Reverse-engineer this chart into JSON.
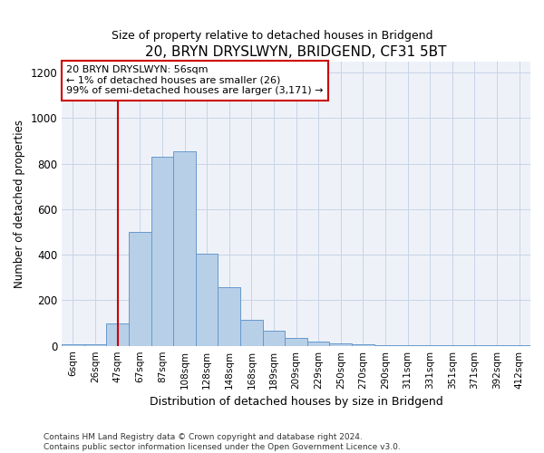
{
  "title": "20, BRYN DRYSLWYN, BRIDGEND, CF31 5BT",
  "subtitle": "Size of property relative to detached houses in Bridgend",
  "xlabel": "Distribution of detached houses by size in Bridgend",
  "ylabel": "Number of detached properties",
  "categories": [
    "6sqm",
    "26sqm",
    "47sqm",
    "67sqm",
    "87sqm",
    "108sqm",
    "128sqm",
    "148sqm",
    "168sqm",
    "189sqm",
    "209sqm",
    "229sqm",
    "250sqm",
    "270sqm",
    "290sqm",
    "311sqm",
    "331sqm",
    "351sqm",
    "371sqm",
    "392sqm",
    "412sqm"
  ],
  "values": [
    5,
    8,
    100,
    500,
    830,
    855,
    405,
    258,
    115,
    68,
    35,
    20,
    12,
    5,
    2,
    2,
    2,
    2,
    2,
    2,
    2
  ],
  "bar_color": "#b8cfe8",
  "bar_edge_color": "#6699cc",
  "grid_color": "#c8d4e8",
  "background_color": "#eef2f8",
  "annotation_text_line1": "20 BRYN DRYSLWYN: 56sqm",
  "annotation_text_line2": "← 1% of detached houses are smaller (26)",
  "annotation_text_line3": "99% of semi-detached houses are larger (3,171) →",
  "red_line_color": "#cc0000",
  "annotation_box_color": "#ffffff",
  "annotation_box_edge": "#cc0000",
  "ylim": [
    0,
    1250
  ],
  "yticks": [
    0,
    200,
    400,
    600,
    800,
    1000,
    1200
  ],
  "footer_line1": "Contains HM Land Registry data © Crown copyright and database right 2024.",
  "footer_line2": "Contains public sector information licensed under the Open Government Licence v3.0.",
  "property_sqm": 56,
  "cat_sqm": [
    6,
    26,
    47,
    67,
    87,
    108,
    128,
    148,
    168,
    189,
    209,
    229,
    250,
    270,
    290,
    311,
    331,
    351,
    371,
    392,
    412
  ]
}
